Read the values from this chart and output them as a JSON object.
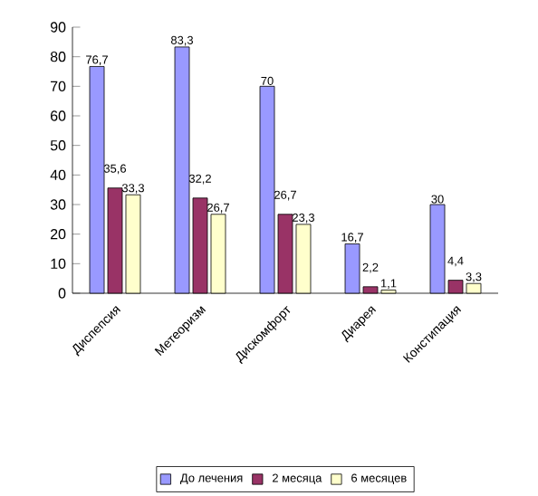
{
  "chart_data": {
    "type": "bar",
    "categories": [
      "Диспепсия",
      "Метеоризм",
      "Дискомфорт",
      "Диарея",
      "Констипация"
    ],
    "series": [
      {
        "name": "До лечения",
        "color": "#9999ff",
        "values": [
          76.7,
          83.3,
          70,
          16.7,
          30
        ],
        "value_labels": [
          "76,7",
          "83,3",
          "70",
          "16,7",
          "30"
        ]
      },
      {
        "name": "2 месяца",
        "color": "#993366",
        "values": [
          35.6,
          32.2,
          26.7,
          2.2,
          4.4
        ],
        "value_labels": [
          "35,6",
          "32,2",
          "26,7",
          "2,2",
          "4,4"
        ]
      },
      {
        "name": "6 месяцев",
        "color": "#ffffcc",
        "values": [
          33.3,
          26.7,
          23.3,
          1.1,
          3.3
        ],
        "value_labels": [
          "33,3",
          "26,7",
          "23,3",
          "1,1",
          "3,3"
        ]
      }
    ],
    "ylim": [
      0,
      90
    ],
    "yticks": [
      0,
      10,
      20,
      30,
      40,
      50,
      60,
      70,
      80,
      90
    ],
    "legend": "bottom"
  }
}
